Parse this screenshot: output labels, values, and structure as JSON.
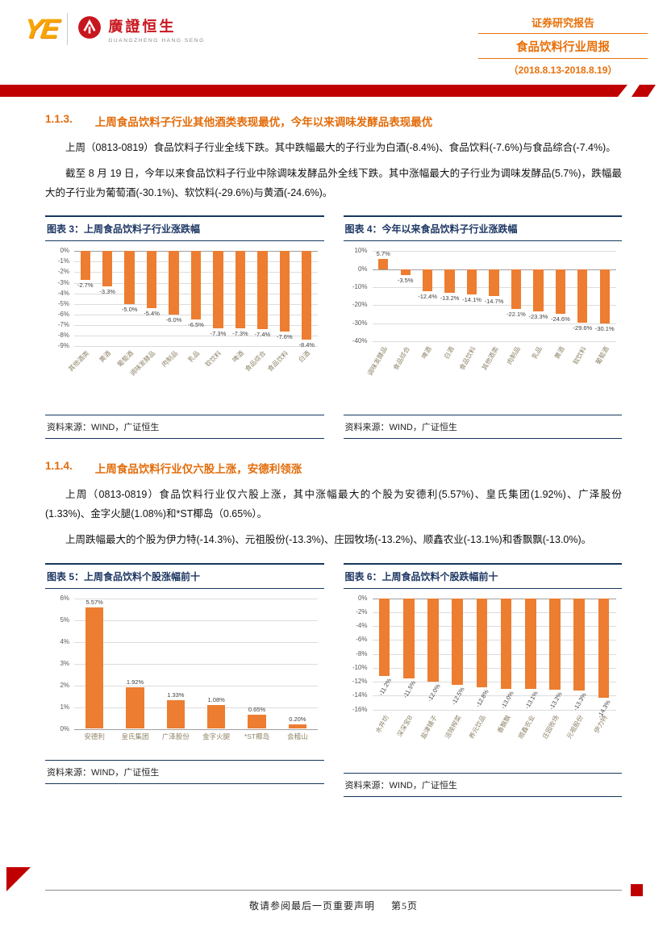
{
  "header": {
    "logo_mark": "YE",
    "logo_cn": "廣證恒生",
    "logo_en": "GUANGZHENG HANG SENG",
    "report_type": "证券研究报告",
    "report_title": "食品饮料行业周报",
    "report_period": "（2018.8.13-2018.8.19）"
  },
  "sections": [
    {
      "number": "1.1.3.",
      "title": "上周食品饮料子行业其他酒类表现最优，今年以来调味发酵品表现最优",
      "paragraphs": [
        "上周（0813-0819）食品饮料子行业全线下跌。其中跌幅最大的子行业为白酒(-8.4%)、食品饮料(-7.6%)与食品综合(-7.4%)。",
        "截至 8 月 19 日，今年以来食品饮料子行业中除调味发酵品外全线下跌。其中涨幅最大的子行业为调味发酵品(5.7%)，跌幅最大的子行业为葡萄酒(-30.1%)、软饮料(-29.6%)与黄酒(-24.6%)。"
      ]
    },
    {
      "number": "1.1.4.",
      "title": "上周食品饮料行业仅六股上涨，安德利领涨",
      "paragraphs": [
        "上周（0813-0819）食品饮料行业仅六股上涨，其中涨幅最大的个股为安德利(5.57%)、皇氏集团(1.92%)、广泽股份(1.33%)、金字火腿(1.08%)和*ST椰岛（0.65%）。",
        "上周跌幅最大的个股为伊力特(-14.3%)、元祖股份(-13.3%)、庄园牧场(-13.2%)、顺鑫农业(-13.1%)和香飘飘(-13.0%)。"
      ]
    }
  ],
  "chart_data": [
    {
      "id": "figure-3",
      "type": "bar",
      "title": "图表 3：上周食品饮料子行业涨跌幅",
      "categories": [
        "其他酒类",
        "黄酒",
        "葡萄酒",
        "调味发酵品",
        "肉制品",
        "乳品",
        "软饮料",
        "啤酒",
        "食品综合",
        "食品饮料",
        "白酒"
      ],
      "values": [
        -2.7,
        -3.3,
        -5.0,
        -5.4,
        -6.0,
        -6.5,
        -7.3,
        -7.3,
        -7.4,
        -7.6,
        -8.4
      ],
      "value_labels": [
        "-2.7%",
        "-3.3%",
        "-5.0%",
        "-5.4%",
        "-6.0%",
        "-6.5%",
        "-7.3%",
        "-7.3%",
        "-7.4%",
        "-7.6%",
        "-8.4%"
      ],
      "ylim": [
        -9,
        0
      ],
      "ytick_step": 1,
      "grid": true,
      "legend": false,
      "category_rotation": -45,
      "value_label_rotation": 0,
      "bar_color": "#ED7D31",
      "source": "资料来源：WIND，广证恒生"
    },
    {
      "id": "figure-4",
      "type": "bar",
      "title": "图表 4：今年以来食品饮料子行业涨跌幅",
      "categories": [
        "调味发酵品",
        "食品综合",
        "啤酒",
        "白酒",
        "食品饮料",
        "其他酒类",
        "肉制品",
        "乳品",
        "黄酒",
        "软饮料",
        "葡萄酒"
      ],
      "values": [
        5.7,
        -3.5,
        -12.4,
        -13.2,
        -14.1,
        -14.7,
        -22.1,
        -23.3,
        -24.6,
        -29.6,
        -30.1
      ],
      "value_labels": [
        "5.7%",
        "-3.5%",
        "-12.4%",
        "-13.2%",
        "-14.1%",
        "-14.7%",
        "-22.1%",
        "-23.3%",
        "-24.6%",
        "-29.6%",
        "-30.1%"
      ],
      "ylim": [
        -40,
        10
      ],
      "ytick_step": 10,
      "grid": true,
      "legend": false,
      "category_rotation": -60,
      "value_label_rotation": 0,
      "bar_color": "#ED7D31",
      "source": "资料来源：WIND，广证恒生"
    },
    {
      "id": "figure-5",
      "type": "bar",
      "title": "图表 5：上周食品饮料个股涨幅前十",
      "categories": [
        "安德利",
        "皇氏集团",
        "广泽股份",
        "金字火腿",
        "*ST椰岛",
        "会稽山"
      ],
      "values": [
        5.57,
        1.92,
        1.33,
        1.08,
        0.65,
        0.2
      ],
      "value_labels": [
        "5.57%",
        "1.92%",
        "1.33%",
        "1.08%",
        "0.65%",
        "0.20%"
      ],
      "ylim": [
        0,
        6
      ],
      "ytick_step": 1,
      "grid": true,
      "legend": false,
      "category_rotation": 0,
      "value_label_rotation": 0,
      "bar_color": "#ED7D31",
      "source": "资料来源：WIND，广证恒生"
    },
    {
      "id": "figure-6",
      "type": "bar",
      "title": "图表 6：上周食品饮料个股跌幅前十",
      "categories": [
        "水井坊",
        "深深宝B",
        "盐津铺子",
        "涪陵榨菜",
        "养元饮品",
        "香飘飘",
        "顺鑫农业",
        "庄园牧场",
        "元祖股份",
        "伊力特"
      ],
      "values": [
        -11.2,
        -11.5,
        -12.0,
        -12.5,
        -12.8,
        -13.0,
        -13.1,
        -13.2,
        -13.3,
        -14.3
      ],
      "value_labels": [
        "-11.2%",
        "-11.5%",
        "-12.0%",
        "-12.5%",
        "-12.8%",
        "-13.0%",
        "-13.1%",
        "-13.2%",
        "-13.3%",
        "-14.3%"
      ],
      "ylim": [
        -16,
        0
      ],
      "ytick_step": 2,
      "grid": true,
      "legend": false,
      "category_rotation": -60,
      "value_label_rotation": -60,
      "bar_color": "#ED7D31",
      "source": "资料来源：WIND，广证恒生"
    }
  ],
  "footer": {
    "disclaimer": "敬请参阅最后一页重要声明",
    "page_number": "第5页"
  },
  "colors": {
    "accent_orange": "#E36C0A",
    "banner_red": "#C00000",
    "bar_orange": "#ED7D31",
    "chart_border_navy": "#17375E",
    "logo_red": "#C8161E"
  }
}
